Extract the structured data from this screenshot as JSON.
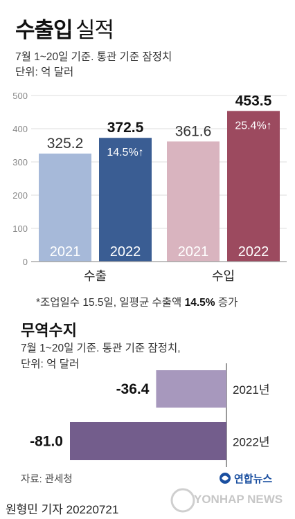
{
  "header": {
    "title_bold": "수출입",
    "title_light": "실적",
    "subtitle_line1": "7월 1~20일 기준. 통관 기준 잠정치",
    "subtitle_line2": "단위: 억 달러"
  },
  "chart_data": [
    {
      "type": "bar",
      "title": "수출입 실적",
      "ylim": [
        0,
        500
      ],
      "yticks": [
        0,
        100,
        200,
        300,
        400,
        500
      ],
      "grid": true,
      "groups": [
        {
          "label": "수출",
          "bars": [
            {
              "year": "2021",
              "value": 325.2,
              "value_label": "325.2",
              "color": "#a6b9d9"
            },
            {
              "year": "2022",
              "value": 372.5,
              "value_label": "372.5",
              "growth": "14.5%↑",
              "color": "#3a5d93"
            }
          ]
        },
        {
          "label": "수입",
          "bars": [
            {
              "year": "2021",
              "value": 361.6,
              "value_label": "361.6",
              "color": "#d9b4bf"
            },
            {
              "year": "2022",
              "value": 453.5,
              "value_label": "453.5",
              "growth": "25.4%↑",
              "color": "#9c4a5f"
            }
          ]
        }
      ]
    },
    {
      "type": "bar",
      "orientation": "horizontal",
      "title": "무역수지",
      "xlim": [
        -81.0,
        0
      ],
      "series": [
        {
          "year": "2021년",
          "value": -36.4,
          "value_label": "-36.4",
          "color": "#a798bd"
        },
        {
          "year": "2022년",
          "value": -81.0,
          "value_label": "-81.0",
          "color": "#735d8c"
        }
      ]
    }
  ],
  "note": {
    "prefix": "*조업일수 15.5일, 일평균 수출액 ",
    "highlight": "14.5%",
    "suffix": " 증가"
  },
  "trade": {
    "title": "무역수지",
    "subtitle_line1": "7월 1~20일 기준. 통관 기준 잠정치,",
    "subtitle_line2": "단위: 억 달러"
  },
  "source": "자료: 관세청",
  "credit": "원형민 기자  20220721",
  "logo": {
    "name_ko": "연합뉴스",
    "name_en": "YONHAP NEWS",
    "color": "#1a4fa0"
  }
}
